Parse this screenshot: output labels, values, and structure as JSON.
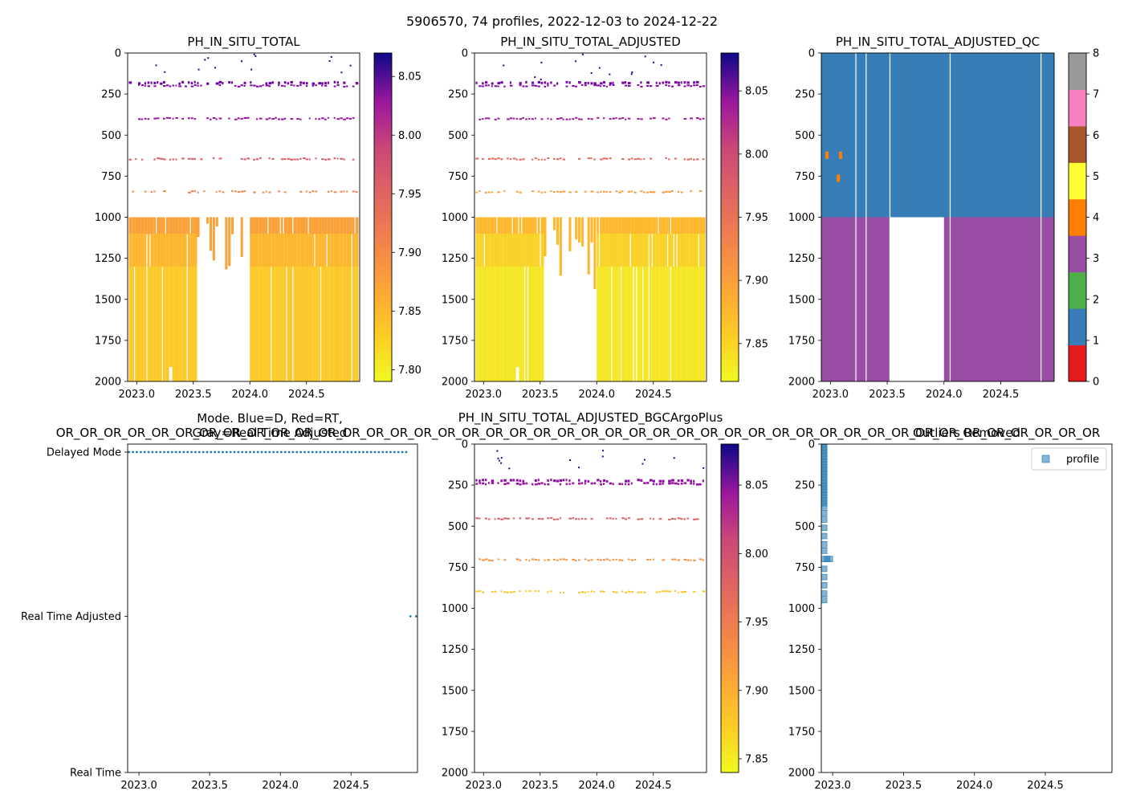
{
  "figure": {
    "suptitle": "5906570, 74 profiles, 2022-12-03 to 2024-12-22"
  },
  "chart_data": [
    {
      "id": "p1",
      "type": "heatmap",
      "title": "PH_IN_SITU_TOTAL",
      "xlim": [
        2022.92,
        2024.97
      ],
      "ylim": [
        2000,
        0
      ],
      "xticks": [
        2023.0,
        2023.5,
        2024.0,
        2024.5
      ],
      "xtick_labels": [
        "2023.0",
        "2023.5",
        "2024.0",
        "2024.5"
      ],
      "yticks": [
        0,
        250,
        500,
        750,
        1000,
        1250,
        1500,
        1750,
        2000
      ],
      "ytick_labels": [
        "0",
        "250",
        "500",
        "750",
        "1000",
        "1250",
        "1500",
        "1750",
        "2000"
      ],
      "colormap": "plasma_r",
      "colorbar": {
        "vmin": 7.79,
        "vmax": 8.07,
        "ticks": [
          7.8,
          7.85,
          7.9,
          7.95,
          8.0,
          8.05
        ],
        "tick_labels": [
          "7.80",
          "7.85",
          "7.90",
          "7.95",
          "8.00",
          "8.05"
        ]
      },
      "data": {
        "bands": [
          {
            "ymin": 175,
            "ymax": 190,
            "value": 8.01
          },
          {
            "ymin": 195,
            "ymax": 205,
            "value": 8.0
          },
          {
            "ymin": 395,
            "ymax": 405,
            "value": 7.98
          },
          {
            "ymin": 640,
            "ymax": 650,
            "value": 7.91
          },
          {
            "ymin": 840,
            "ymax": 850,
            "value": 7.87
          }
        ],
        "deep_block": {
          "ymin": 1000,
          "ymax": 2000,
          "v_top": 7.85,
          "v_mid": 7.83,
          "v_bottom": 7.82
        },
        "gaps": [
          {
            "x0": 2023.52,
            "x1": 2024.0,
            "y_from": 1000
          },
          {
            "x0": 2023.3,
            "x1": 2023.32,
            "y_from": 1910
          }
        ]
      }
    },
    {
      "id": "p2",
      "type": "heatmap",
      "title": "PH_IN_SITU_TOTAL_ADJUSTED",
      "xlim": [
        2022.92,
        2024.97
      ],
      "ylim": [
        2000,
        0
      ],
      "xticks": [
        2023.0,
        2023.5,
        2024.0,
        2024.5
      ],
      "xtick_labels": [
        "2023.0",
        "2023.5",
        "2024.0",
        "2024.5"
      ],
      "yticks": [
        0,
        250,
        500,
        750,
        1000,
        1250,
        1500,
        1750,
        2000
      ],
      "ytick_labels": [
        "0",
        "250",
        "500",
        "750",
        "1000",
        "1250",
        "1500",
        "1750",
        "2000"
      ],
      "colormap": "plasma_r",
      "colorbar": {
        "vmin": 7.82,
        "vmax": 8.08,
        "ticks": [
          7.85,
          7.9,
          7.95,
          8.0,
          8.05
        ],
        "tick_labels": [
          "7.85",
          "7.90",
          "7.95",
          "8.00",
          "8.05"
        ]
      },
      "data": {
        "bands": [
          {
            "ymin": 175,
            "ymax": 190,
            "value": 8.02
          },
          {
            "ymin": 195,
            "ymax": 205,
            "value": 8.01
          },
          {
            "ymin": 395,
            "ymax": 405,
            "value": 7.99
          },
          {
            "ymin": 640,
            "ymax": 650,
            "value": 7.92
          },
          {
            "ymin": 840,
            "ymax": 850,
            "value": 7.88
          }
        ],
        "deep_block": {
          "ymin": 1000,
          "ymax": 2000,
          "v_top": 7.86,
          "v_mid": 7.84,
          "v_bottom": 7.83
        },
        "gaps": [
          {
            "x0": 2023.52,
            "x1": 2024.0,
            "y_from": 1000
          },
          {
            "x0": 2023.3,
            "x1": 2023.32,
            "y_from": 1910
          }
        ]
      }
    },
    {
      "id": "p3",
      "type": "heatmap",
      "title": "PH_IN_SITU_TOTAL_ADJUSTED_QC",
      "xlim": [
        2022.92,
        2024.97
      ],
      "ylim": [
        2000,
        0
      ],
      "xticks": [
        2023.0,
        2023.5,
        2024.0,
        2024.5
      ],
      "xtick_labels": [
        "2023.0",
        "2023.5",
        "2024.0",
        "2024.5"
      ],
      "yticks": [
        0,
        250,
        500,
        750,
        1000,
        1250,
        1500,
        1750,
        2000
      ],
      "ytick_labels": [
        "0",
        "250",
        "500",
        "750",
        "1000",
        "1250",
        "1500",
        "1750",
        "2000"
      ],
      "colorbar": {
        "vmin": 0,
        "vmax": 8,
        "ticks": [
          0,
          1,
          2,
          3,
          4,
          5,
          6,
          7,
          8
        ],
        "tick_labels": [
          "0",
          "1",
          "2",
          "3",
          "4",
          "5",
          "6",
          "7",
          "8"
        ],
        "categories": [
          {
            "qc": 0,
            "color": "#e41a1c"
          },
          {
            "qc": 1,
            "color": "#377eb8"
          },
          {
            "qc": 2,
            "color": "#4daf4a"
          },
          {
            "qc": 3,
            "color": "#984ea3"
          },
          {
            "qc": 4,
            "color": "#ff7f00"
          },
          {
            "qc": 5,
            "color": "#ffff33"
          },
          {
            "qc": 6,
            "color": "#a65628"
          },
          {
            "qc": 7,
            "color": "#f781bf"
          },
          {
            "qc": 8,
            "color": "#999999"
          }
        ]
      },
      "data": {
        "regions": [
          {
            "ymin": 0,
            "ymax": 1000,
            "qc": 1
          },
          {
            "ymin": 1000,
            "ymax": 2000,
            "qc": 3
          }
        ],
        "flag4_points": [
          {
            "x": 2022.97,
            "y": 620
          },
          {
            "x": 2023.09,
            "y": 620
          },
          {
            "x": 2023.07,
            "y": 760
          }
        ]
      }
    },
    {
      "id": "p4",
      "type": "scatter",
      "title_line1": "Mode. Blue=D, Red=RT,",
      "title_line2": "Gray=Real Time Adjusted",
      "overflow_label": "OR_OR_OR_OR_OR_OR_OR_OR_OR_OR_OR_OR_OR_OR_OR_OR_OR_OR_OR_OR_OR_OR_OR_OR_OR_OR_OR_OR_OR_OR_OR_OR_OR_OR_OR_OR_OR_OR_OR_OR_OR_OR_OR_OR",
      "xlim": [
        2022.92,
        2024.97
      ],
      "xticks": [
        2023.0,
        2023.5,
        2024.0,
        2024.5
      ],
      "xtick_labels": [
        "2023.0",
        "2023.5",
        "2024.0",
        "2024.5"
      ],
      "ycategories": [
        "Real Time",
        "Real Time Adjusted",
        "Delayed Mode"
      ],
      "marker_color": "#1f77b4",
      "series": [
        {
          "name": "Delayed Mode",
          "y": 2,
          "x_start": 2022.93,
          "x_end": 2024.89,
          "count": 72
        },
        {
          "name": "Real Time Adjusted",
          "y": 1,
          "x_start": 2024.92,
          "x_end": 2024.96,
          "count": 2
        }
      ]
    },
    {
      "id": "p5",
      "type": "heatmap",
      "title": "PH_IN_SITU_TOTAL_ADJUSTED_BGCArgoPlus",
      "xlim": [
        2022.92,
        2024.97
      ],
      "ylim": [
        2000,
        0
      ],
      "xticks": [
        2023.0,
        2023.5,
        2024.0,
        2024.5
      ],
      "xtick_labels": [
        "2023.0",
        "2023.5",
        "2024.0",
        "2024.5"
      ],
      "yticks": [
        0,
        250,
        500,
        750,
        1000,
        1250,
        1500,
        1750,
        2000
      ],
      "ytick_labels": [
        "0",
        "250",
        "500",
        "750",
        "1000",
        "1250",
        "1500",
        "1750",
        "2000"
      ],
      "colormap": "plasma_r",
      "colorbar": {
        "vmin": 7.84,
        "vmax": 8.08,
        "ticks": [
          7.85,
          7.9,
          7.95,
          8.0,
          8.05
        ],
        "tick_labels": [
          "7.85",
          "7.90",
          "7.95",
          "8.00",
          "8.05"
        ]
      },
      "data": {
        "bands": [
          {
            "ymin": 215,
            "ymax": 230,
            "value": 8.01
          },
          {
            "ymin": 235,
            "ymax": 248,
            "value": 8.0
          },
          {
            "ymin": 450,
            "ymax": 460,
            "value": 7.94
          },
          {
            "ymin": 700,
            "ymax": 710,
            "value": 7.9
          },
          {
            "ymin": 895,
            "ymax": 905,
            "value": 7.87
          }
        ]
      }
    },
    {
      "id": "p6",
      "type": "scatter",
      "title": "Outliers Removed",
      "xlim": [
        2022.92,
        2024.97
      ],
      "ylim": [
        2000,
        0
      ],
      "xticks": [
        2023.0,
        2023.5,
        2024.0,
        2024.5
      ],
      "xtick_labels": [
        "2023.0",
        "2023.5",
        "2024.0",
        "2024.5"
      ],
      "yticks": [
        0,
        250,
        500,
        750,
        1000,
        1250,
        1500,
        1750,
        2000
      ],
      "ytick_labels": [
        "0",
        "250",
        "500",
        "750",
        "1000",
        "1250",
        "1500",
        "1750",
        "2000"
      ],
      "legend": {
        "label": "profile",
        "location": "upper right"
      },
      "marker_color": "#1f77b4",
      "points": [
        {
          "x": 2022.94,
          "y": 0
        },
        {
          "x": 2022.94,
          "y": 20
        },
        {
          "x": 2022.94,
          "y": 40
        },
        {
          "x": 2022.94,
          "y": 60
        },
        {
          "x": 2022.94,
          "y": 80
        },
        {
          "x": 2022.94,
          "y": 100
        },
        {
          "x": 2022.94,
          "y": 120
        },
        {
          "x": 2022.94,
          "y": 140
        },
        {
          "x": 2022.94,
          "y": 160
        },
        {
          "x": 2022.94,
          "y": 180
        },
        {
          "x": 2022.94,
          "y": 200
        },
        {
          "x": 2022.94,
          "y": 220
        },
        {
          "x": 2022.94,
          "y": 240
        },
        {
          "x": 2022.94,
          "y": 260
        },
        {
          "x": 2022.94,
          "y": 280
        },
        {
          "x": 2022.94,
          "y": 300
        },
        {
          "x": 2022.94,
          "y": 320
        },
        {
          "x": 2022.94,
          "y": 340
        },
        {
          "x": 2022.94,
          "y": 360
        },
        {
          "x": 2022.94,
          "y": 380
        },
        {
          "x": 2022.94,
          "y": 420
        },
        {
          "x": 2022.94,
          "y": 460
        },
        {
          "x": 2022.94,
          "y": 510
        },
        {
          "x": 2022.94,
          "y": 560
        },
        {
          "x": 2022.94,
          "y": 610
        },
        {
          "x": 2022.94,
          "y": 650
        },
        {
          "x": 2022.94,
          "y": 700
        },
        {
          "x": 2022.96,
          "y": 700
        },
        {
          "x": 2022.98,
          "y": 700
        },
        {
          "x": 2022.94,
          "y": 760
        },
        {
          "x": 2022.94,
          "y": 810
        },
        {
          "x": 2022.94,
          "y": 860
        },
        {
          "x": 2022.94,
          "y": 910
        },
        {
          "x": 2022.94,
          "y": 950
        }
      ]
    }
  ]
}
